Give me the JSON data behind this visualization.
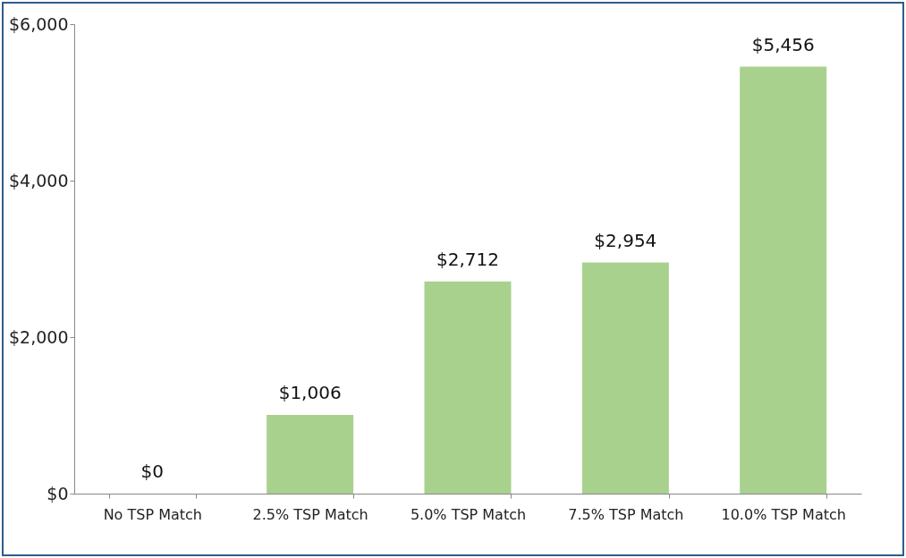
{
  "chart_data": {
    "type": "bar",
    "categories": [
      "No TSP Match",
      "2.5% TSP Match",
      "5.0% TSP Match",
      "7.5% TSP Match",
      "10.0% TSP Match"
    ],
    "values": [
      0,
      1006,
      2712,
      2954,
      5456
    ],
    "value_labels": [
      "$0",
      "$1,006",
      "$2,712",
      "$2,954",
      "$5,456"
    ],
    "color": "#a9d18e",
    "ylim": [
      0,
      6000
    ],
    "yticks": [
      {
        "value": 0,
        "label": "$0"
      },
      {
        "value": 2000,
        "label": "$2,000"
      },
      {
        "value": 4000,
        "label": "$4,000"
      },
      {
        "value": 6000,
        "label": "$6,000"
      }
    ],
    "grid": false
  }
}
